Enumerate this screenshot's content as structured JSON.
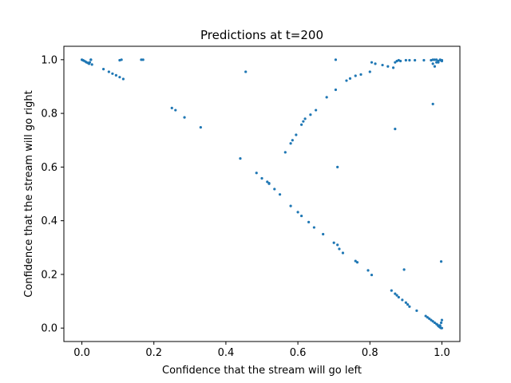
{
  "chart_data": {
    "type": "scatter",
    "title": "Predictions at t=200",
    "xlabel": "Confidence that the stream will go left",
    "ylabel": "Confidence that the stream will go right",
    "xlim": [
      -0.05,
      1.05
    ],
    "ylim": [
      -0.05,
      1.05
    ],
    "xticks": [
      "0.0",
      "0.2",
      "0.4",
      "0.6",
      "0.8",
      "1.0"
    ],
    "yticks": [
      "0.0",
      "0.2",
      "0.4",
      "0.6",
      "0.8",
      "1.0"
    ],
    "grid": false,
    "marker_color": "#1f77b4",
    "series": [
      {
        "x": [
          0.0,
          0.003,
          0.006,
          0.01,
          0.013,
          0.017,
          0.02,
          0.022,
          0.025,
          0.028,
          0.025,
          0.06,
          0.075,
          0.085,
          0.095,
          0.105,
          0.115,
          0.105,
          0.11,
          0.165,
          0.17,
          0.25,
          0.26,
          0.285,
          0.33,
          0.44,
          0.455,
          0.485,
          0.5,
          0.515,
          0.52,
          0.52,
          0.535,
          0.55,
          0.58,
          0.6,
          0.61,
          0.63,
          0.645,
          0.67,
          0.7,
          0.71,
          0.715,
          0.725,
          0.76,
          0.765,
          0.795,
          0.805,
          0.86,
          0.87,
          0.875,
          0.88,
          0.89,
          0.9,
          0.905,
          0.91,
          0.93,
          0.955,
          0.96,
          0.965,
          0.97,
          0.975,
          0.98,
          0.985,
          0.988,
          0.99,
          0.992,
          0.994,
          0.996,
          0.998,
          1.0,
          0.998,
          0.995,
          1.0,
          0.565,
          0.58,
          0.585,
          0.595,
          0.61,
          0.615,
          0.62,
          0.635,
          0.65,
          0.68,
          0.705,
          0.735,
          0.745,
          0.76,
          0.775,
          0.8,
          0.805,
          0.815,
          0.835,
          0.85,
          0.865,
          0.87,
          0.875,
          0.88,
          0.885,
          0.9,
          0.91,
          0.925,
          0.95,
          0.97,
          0.975,
          0.98,
          0.985,
          0.99,
          0.995,
          1.0,
          0.99,
          0.985,
          0.98,
          0.975,
          0.997,
          1.0,
          0.705,
          0.71,
          0.975,
          0.87,
          0.895,
          0.998
        ],
        "y": [
          1.0,
          0.998,
          0.996,
          0.993,
          0.99,
          0.988,
          0.985,
          0.99,
          1.0,
          0.982,
          1.0,
          0.965,
          0.955,
          0.948,
          0.942,
          0.935,
          0.928,
          0.998,
          1.0,
          1.0,
          1.0,
          0.82,
          0.812,
          0.785,
          0.748,
          0.632,
          0.955,
          0.578,
          0.558,
          0.545,
          0.54,
          0.538,
          0.518,
          0.498,
          0.455,
          0.432,
          0.418,
          0.395,
          0.375,
          0.35,
          0.318,
          0.31,
          0.295,
          0.28,
          0.25,
          0.245,
          0.215,
          0.198,
          0.14,
          0.128,
          0.122,
          0.115,
          0.105,
          0.095,
          0.088,
          0.08,
          0.065,
          0.045,
          0.04,
          0.035,
          0.03,
          0.025,
          0.02,
          0.015,
          0.012,
          0.008,
          0.006,
          0.004,
          0.002,
          0.0,
          0.0,
          0.02,
          0.01,
          0.03,
          0.655,
          0.688,
          0.7,
          0.72,
          0.758,
          0.77,
          0.78,
          0.795,
          0.812,
          0.86,
          0.888,
          0.922,
          0.93,
          0.94,
          0.945,
          0.955,
          0.99,
          0.985,
          0.98,
          0.975,
          0.97,
          0.99,
          0.995,
          0.998,
          0.995,
          0.998,
          0.998,
          0.998,
          0.998,
          0.998,
          0.985,
          0.975,
          1.0,
          0.995,
          1.0,
          0.998,
          0.99,
          0.99,
          1.0,
          1.0,
          0.998,
          0.995,
          1.0,
          0.6,
          0.835,
          0.742,
          0.218,
          0.248
        ]
      }
    ]
  }
}
